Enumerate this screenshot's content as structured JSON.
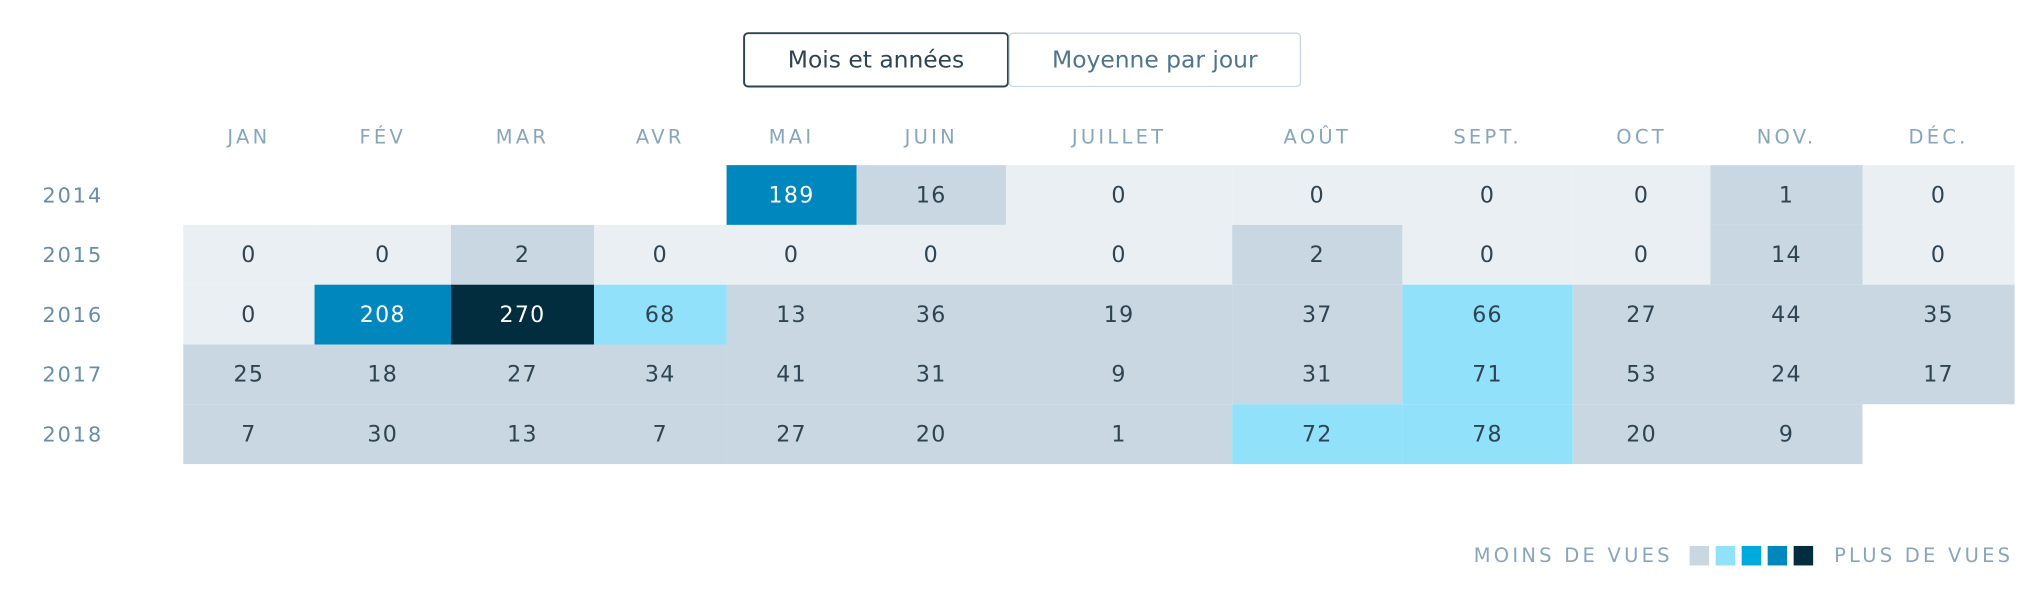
{
  "tabs": [
    {
      "label": "Mois et années",
      "selected": true
    },
    {
      "label": "Moyenne par jour",
      "selected": false
    }
  ],
  "table": {
    "columns": [
      "JAN",
      "FÉV",
      "MAR",
      "AVR",
      "MAI",
      "JUIN",
      "JUILLET",
      "AOÛT",
      "SEPT.",
      "OCT",
      "NOV.",
      "DÉC."
    ],
    "rows": [
      {
        "year": "2014",
        "values": [
          null,
          null,
          null,
          null,
          189,
          16,
          0,
          0,
          0,
          0,
          1,
          0
        ],
        "colors": [
          null,
          null,
          null,
          null,
          "#0087be",
          "#c8d7e1",
          "#e9eff3",
          "#e9eff3",
          "#e9eff3",
          "#e9eff3",
          "#c8d7e1",
          "#e9eff3"
        ]
      },
      {
        "year": "2015",
        "values": [
          0,
          0,
          2,
          0,
          0,
          0,
          0,
          2,
          0,
          0,
          14,
          0
        ],
        "colors": [
          "#e9eff3",
          "#e9eff3",
          "#c8d7e1",
          "#e9eff3",
          "#e9eff3",
          "#e9eff3",
          "#e9eff3",
          "#c8d7e1",
          "#e9eff3",
          "#e9eff3",
          "#c8d7e1",
          "#e9eff3"
        ]
      },
      {
        "year": "2016",
        "values": [
          0,
          208,
          270,
          68,
          13,
          36,
          19,
          37,
          66,
          27,
          44,
          35
        ],
        "colors": [
          "#e9eff3",
          "#0087be",
          "#012d3f",
          "#91e1fb",
          "#c8d7e1",
          "#c8d7e1",
          "#c8d7e1",
          "#c8d7e1",
          "#91e1fb",
          "#c8d7e1",
          "#c8d7e1",
          "#c8d7e1"
        ]
      },
      {
        "year": "2017",
        "values": [
          25,
          18,
          27,
          34,
          41,
          31,
          9,
          31,
          71,
          53,
          24,
          17
        ],
        "colors": [
          "#c8d7e1",
          "#c8d7e1",
          "#c8d7e1",
          "#c8d7e1",
          "#c8d7e1",
          "#c8d7e1",
          "#c8d7e1",
          "#c8d7e1",
          "#91e1fb",
          "#c8d7e1",
          "#c8d7e1",
          "#c8d7e1"
        ]
      },
      {
        "year": "2018",
        "values": [
          7,
          30,
          13,
          7,
          27,
          20,
          1,
          72,
          78,
          20,
          9,
          null
        ],
        "colors": [
          "#c8d7e1",
          "#c8d7e1",
          "#c8d7e1",
          "#c8d7e1",
          "#c8d7e1",
          "#c8d7e1",
          "#c8d7e1",
          "#91e1fb",
          "#91e1fb",
          "#c8d7e1",
          "#c8d7e1",
          null
        ]
      }
    ]
  },
  "legend": {
    "low_label": "MOINS DE VUES",
    "high_label": "PLUS DE VUES",
    "colors": [
      "#c8d7e1",
      "#91e1fb",
      "#00aadc",
      "#0087be",
      "#012d3f"
    ]
  }
}
